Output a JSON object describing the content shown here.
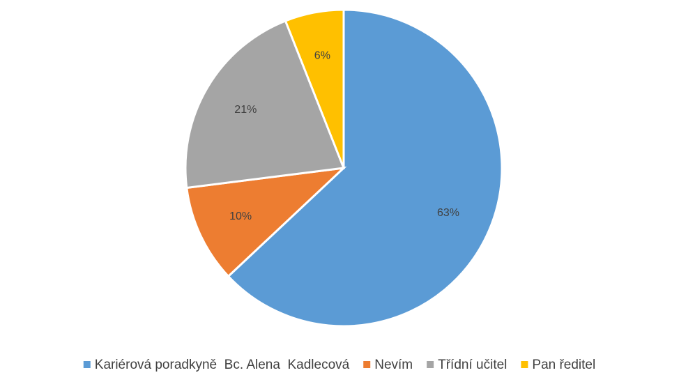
{
  "chart_data": {
    "type": "pie",
    "categories": [
      "Kariérová poradkyně  Bc. Alena  Kadlecová",
      "Nevím",
      "Třídní učitel",
      "Pan ředitel"
    ],
    "values": [
      63,
      10,
      21,
      6
    ],
    "value_labels": [
      "63%",
      "10%",
      "21%",
      "6%"
    ],
    "colors": [
      "#5b9bd5",
      "#ed7d31",
      "#a5a5a5",
      "#ffc000"
    ],
    "legend": "bottom"
  }
}
